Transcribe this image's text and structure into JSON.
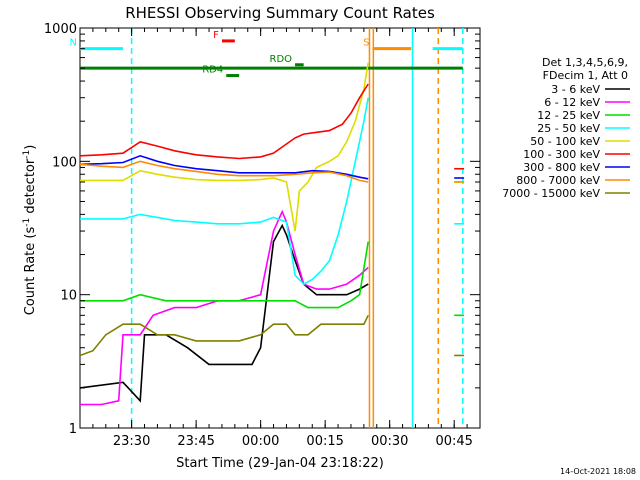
{
  "chart_data": {
    "type": "line",
    "title": "RHESSI Observing Summary Count Rates",
    "xlabel": "Start Time (29-Jan-04 23:18:22)",
    "ylabel": "Count Rate (s",
    "ylabel_sup": "-1",
    "ylabel_mid": " detector",
    "ylabel_sup2": "-1",
    "ylabel_end": ")",
    "x_range_min": [
      0,
      67
    ],
    "y_scale": "log",
    "ylim": [
      1,
      1000
    ],
    "x_ticks": [
      {
        "m": 12,
        "label": "23:30"
      },
      {
        "m": 27,
        "label": "23:45"
      },
      {
        "m": 42,
        "label": "00:00"
      },
      {
        "m": 57,
        "label": "00:15"
      },
      {
        "m": 72,
        "label": "00:30"
      },
      {
        "m": 87,
        "label": "00:45"
      }
    ],
    "y_ticks": [
      {
        "v": 1,
        "label": "1"
      },
      {
        "v": 10,
        "label": "10"
      },
      {
        "v": 100,
        "label": "100"
      },
      {
        "v": 1000,
        "label": "1000"
      }
    ],
    "legend_header": [
      "Det 1,3,4,5,6,9,",
      "FDecim 1, Att 0"
    ],
    "timestamp": "14-Oct-2021 18:08",
    "series": [
      {
        "name": "3 - 6 keV",
        "color": "#000000",
        "points": [
          [
            0,
            2
          ],
          [
            10,
            2.2
          ],
          [
            14,
            1.6
          ],
          [
            15,
            5
          ],
          [
            20,
            5
          ],
          [
            25,
            4
          ],
          [
            30,
            3
          ],
          [
            35,
            3
          ],
          [
            40,
            3
          ],
          [
            42,
            4
          ],
          [
            45,
            25
          ],
          [
            47,
            33
          ],
          [
            48,
            28
          ],
          [
            50,
            18
          ],
          [
            52,
            12
          ],
          [
            55,
            10
          ],
          [
            58,
            10
          ],
          [
            62,
            10
          ],
          [
            65,
            11
          ],
          [
            67,
            12
          ]
        ]
      },
      {
        "name": "6 - 12 keV",
        "color": "#ff00ff",
        "points": [
          [
            0,
            1.5
          ],
          [
            5,
            1.5
          ],
          [
            9,
            1.6
          ],
          [
            10,
            5
          ],
          [
            14,
            5
          ],
          [
            17,
            7
          ],
          [
            22,
            8
          ],
          [
            27,
            8
          ],
          [
            32,
            9
          ],
          [
            37,
            9
          ],
          [
            42,
            10
          ],
          [
            45,
            30
          ],
          [
            47,
            42
          ],
          [
            48,
            35
          ],
          [
            50,
            20
          ],
          [
            52,
            12
          ],
          [
            55,
            11
          ],
          [
            58,
            11
          ],
          [
            62,
            12
          ],
          [
            65,
            14
          ],
          [
            67,
            16
          ]
        ]
      },
      {
        "name": "12 - 25 keV",
        "color": "#00dd00",
        "points": [
          [
            0,
            9
          ],
          [
            5,
            9
          ],
          [
            10,
            9
          ],
          [
            14,
            10
          ],
          [
            20,
            9
          ],
          [
            25,
            9
          ],
          [
            30,
            9
          ],
          [
            35,
            9
          ],
          [
            40,
            9
          ],
          [
            45,
            9
          ],
          [
            48,
            9
          ],
          [
            50,
            9
          ],
          [
            53,
            8
          ],
          [
            56,
            8
          ],
          [
            60,
            8
          ],
          [
            63,
            9
          ],
          [
            65,
            10
          ],
          [
            67,
            25
          ]
        ]
      },
      {
        "name": "25 - 50 keV",
        "color": "#00ffff",
        "points": [
          [
            0,
            37
          ],
          [
            5,
            37
          ],
          [
            10,
            37
          ],
          [
            14,
            40
          ],
          [
            18,
            38
          ],
          [
            22,
            36
          ],
          [
            27,
            35
          ],
          [
            32,
            34
          ],
          [
            37,
            34
          ],
          [
            42,
            35
          ],
          [
            45,
            38
          ],
          [
            48,
            35
          ],
          [
            50,
            14
          ],
          [
            52,
            12
          ],
          [
            54,
            13
          ],
          [
            56,
            15
          ],
          [
            58,
            18
          ],
          [
            60,
            28
          ],
          [
            62,
            50
          ],
          [
            64,
            100
          ],
          [
            66,
            200
          ],
          [
            67,
            300
          ]
        ]
      },
      {
        "name": "50 - 100 keV",
        "color": "#dddd00",
        "points": [
          [
            0,
            72
          ],
          [
            5,
            72
          ],
          [
            10,
            72
          ],
          [
            14,
            85
          ],
          [
            18,
            80
          ],
          [
            22,
            76
          ],
          [
            27,
            73
          ],
          [
            32,
            72
          ],
          [
            37,
            72
          ],
          [
            42,
            73
          ],
          [
            45,
            75
          ],
          [
            48,
            70
          ],
          [
            50,
            30
          ],
          [
            51,
            60
          ],
          [
            53,
            70
          ],
          [
            55,
            90
          ],
          [
            58,
            100
          ],
          [
            60,
            110
          ],
          [
            62,
            140
          ],
          [
            64,
            200
          ],
          [
            66,
            350
          ],
          [
            67,
            550
          ]
        ]
      },
      {
        "name": "100 - 300 keV",
        "color": "#ff0000",
        "points": [
          [
            0,
            110
          ],
          [
            5,
            112
          ],
          [
            10,
            115
          ],
          [
            14,
            140
          ],
          [
            18,
            130
          ],
          [
            22,
            120
          ],
          [
            27,
            112
          ],
          [
            32,
            108
          ],
          [
            37,
            105
          ],
          [
            42,
            108
          ],
          [
            45,
            115
          ],
          [
            50,
            150
          ],
          [
            52,
            160
          ],
          [
            55,
            165
          ],
          [
            58,
            170
          ],
          [
            61,
            190
          ],
          [
            63,
            230
          ],
          [
            65,
            300
          ],
          [
            67,
            380
          ]
        ]
      },
      {
        "name": "300 - 800 keV",
        "color": "#0000ff",
        "points": [
          [
            0,
            95
          ],
          [
            5,
            96
          ],
          [
            10,
            98
          ],
          [
            14,
            110
          ],
          [
            18,
            100
          ],
          [
            22,
            93
          ],
          [
            27,
            88
          ],
          [
            32,
            85
          ],
          [
            37,
            82
          ],
          [
            42,
            82
          ],
          [
            45,
            82
          ],
          [
            50,
            82
          ],
          [
            54,
            85
          ],
          [
            58,
            84
          ],
          [
            62,
            80
          ],
          [
            65,
            76
          ],
          [
            67,
            74
          ]
        ]
      },
      {
        "name": "800 - 7000 keV",
        "color": "#ff8c00",
        "points": [
          [
            0,
            95
          ],
          [
            5,
            92
          ],
          [
            10,
            90
          ],
          [
            14,
            100
          ],
          [
            18,
            93
          ],
          [
            22,
            88
          ],
          [
            27,
            84
          ],
          [
            32,
            80
          ],
          [
            37,
            78
          ],
          [
            42,
            78
          ],
          [
            45,
            78
          ],
          [
            50,
            80
          ],
          [
            54,
            82
          ],
          [
            58,
            83
          ],
          [
            62,
            78
          ],
          [
            65,
            72
          ],
          [
            67,
            70
          ]
        ]
      },
      {
        "name": "7000 - 15000 keV",
        "color": "#808000",
        "points": [
          [
            0,
            3.5
          ],
          [
            3,
            3.8
          ],
          [
            6,
            5
          ],
          [
            10,
            6
          ],
          [
            14,
            6
          ],
          [
            18,
            5
          ],
          [
            22,
            5
          ],
          [
            27,
            4.5
          ],
          [
            32,
            4.5
          ],
          [
            37,
            4.5
          ],
          [
            42,
            5
          ],
          [
            45,
            6
          ],
          [
            48,
            6
          ],
          [
            50,
            5
          ],
          [
            53,
            5
          ],
          [
            56,
            6
          ],
          [
            60,
            6
          ],
          [
            63,
            6
          ],
          [
            66,
            6
          ],
          [
            67,
            7
          ]
        ]
      }
    ],
    "segments_after_gap": {
      "x_range_min": [
        87,
        89.3
      ],
      "values": {
        "100 - 300 keV": 88,
        "300 - 800 keV": 75,
        "800 - 7000 keV": 70,
        "50 - 100 keV": 70,
        "25 - 50 keV": 34,
        "12 - 25 keV": 7,
        "7000 - 15000 keV": 3.5
      }
    },
    "flag_bars": [
      {
        "label": "F",
        "x_min": [
          33,
          36
        ],
        "y_value": 800,
        "color": "#ff0000"
      },
      {
        "label": "RD4",
        "x_min": [
          34,
          37
        ],
        "y_value": 440,
        "color": "#008000"
      },
      {
        "label": "RDO",
        "x_min": [
          50,
          52
        ],
        "y_value": 530,
        "color": "#008000"
      },
      {
        "label": "S",
        "x_min": [
          68,
          77
        ],
        "y_value": 700,
        "color": "#ff8c00"
      },
      {
        "label": "N",
        "x_min": [
          0,
          10
        ],
        "y_value": 700,
        "color": "#00ffff"
      },
      {
        "label": "",
        "x_min": [
          82,
          89
        ],
        "y_value": 700,
        "color": "#00ffff"
      },
      {
        "label": "",
        "x_min": [
          0,
          89
        ],
        "y_value": 500,
        "color": "#008000"
      }
    ],
    "vertical_markers": [
      {
        "x_min": 12,
        "style": "dashed",
        "color": "#00ffff"
      },
      {
        "x_min": 67.3,
        "style": "solid",
        "color": "#ff8c00"
      },
      {
        "x_min": 68.2,
        "style": "solid",
        "color": "#ff8c00"
      },
      {
        "x_min": 77.3,
        "style": "solid",
        "color": "#00ffff"
      },
      {
        "x_min": 83.3,
        "style": "dashed",
        "color": "#ff8c00"
      },
      {
        "x_min": 89,
        "style": "dashed",
        "color": "#00ffff"
      }
    ]
  }
}
